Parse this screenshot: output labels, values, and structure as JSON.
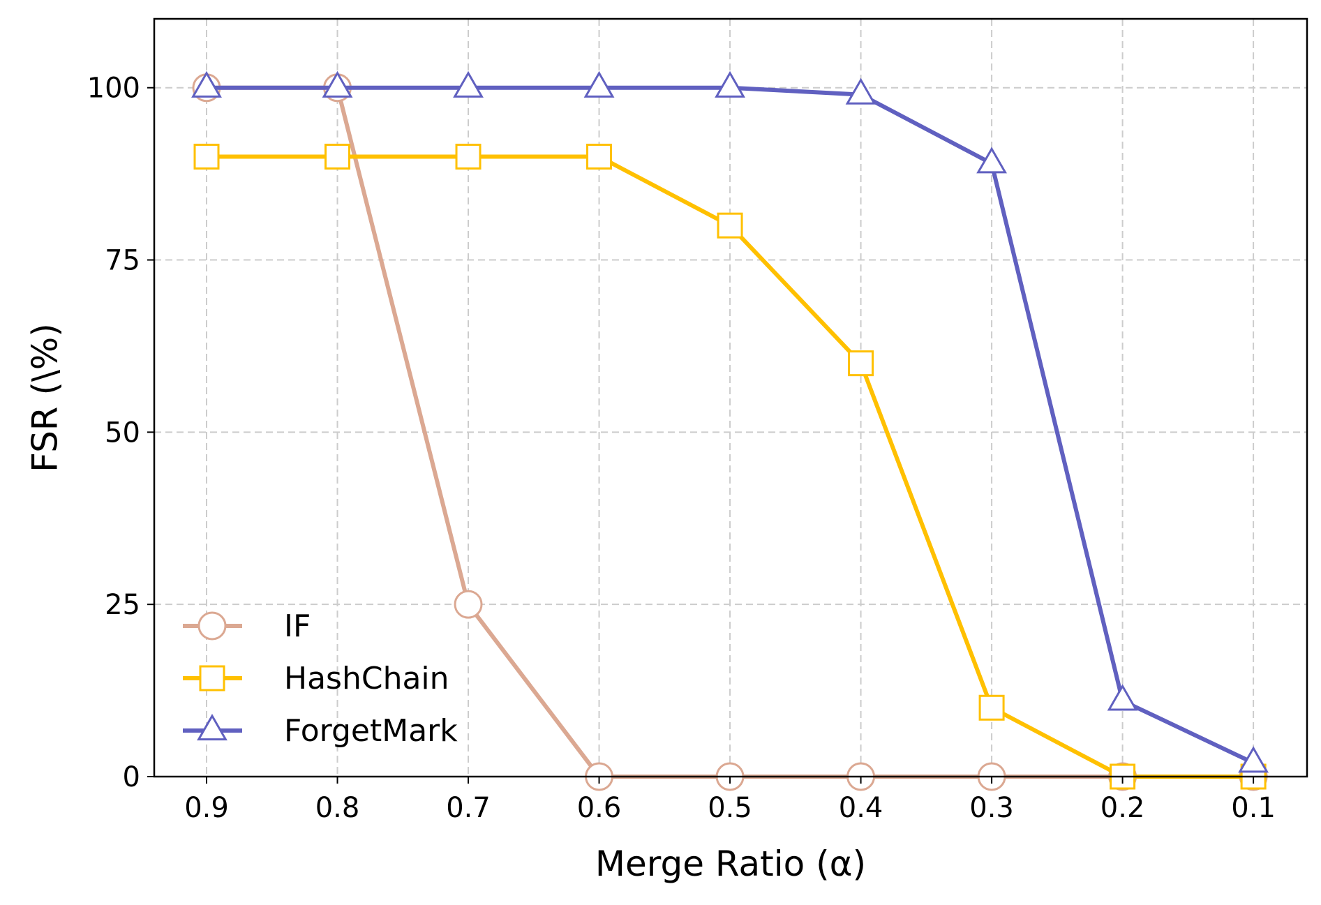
{
  "chart_data": {
    "type": "line",
    "title": "",
    "xlabel": "Merge Ratio (α)",
    "ylabel": "FSR (\\%)",
    "x": [
      0.9,
      0.8,
      0.7,
      0.6,
      0.5,
      0.4,
      0.3,
      0.2,
      0.1
    ],
    "x_tick_labels": [
      "0.9",
      "0.8",
      "0.7",
      "0.6",
      "0.5",
      "0.4",
      "0.3",
      "0.2",
      "0.1"
    ],
    "x_reversed": true,
    "xlim": [
      0.94,
      0.059
    ],
    "ylim": [
      0,
      110
    ],
    "y_ticks": [
      0,
      25,
      50,
      75,
      100
    ],
    "y_tick_labels": [
      "0",
      "25",
      "50",
      "75",
      "100"
    ],
    "grid": true,
    "legend_position": "lower-left",
    "series": [
      {
        "name": "IF",
        "color": "#dba892",
        "marker": "circle",
        "values": [
          100,
          100,
          25,
          0,
          0,
          0,
          0,
          0,
          0
        ]
      },
      {
        "name": "HashChain",
        "color": "#ffc000",
        "marker": "square",
        "values": [
          90,
          90,
          90,
          90,
          80,
          60,
          10,
          0,
          0
        ]
      },
      {
        "name": "ForgetMark",
        "color": "#6060c0",
        "marker": "triangle",
        "values": [
          100,
          100,
          100,
          100,
          100,
          99,
          89,
          11,
          2
        ]
      }
    ]
  }
}
